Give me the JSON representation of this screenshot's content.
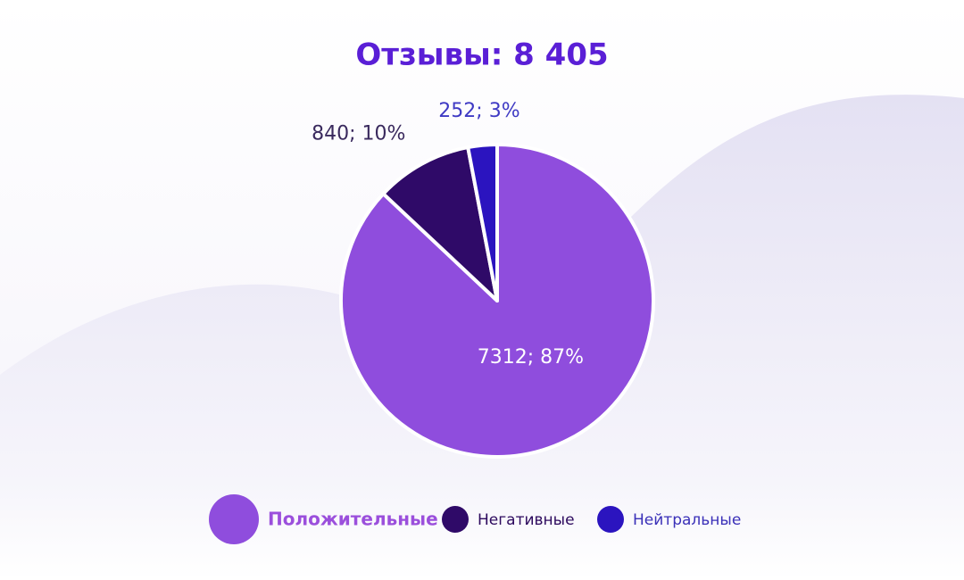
{
  "chart_data": {
    "type": "pie",
    "title": "Отзывы: 8 405",
    "categories": [
      "Положительные",
      "Негативные",
      "Нейтральные"
    ],
    "values": [
      7312,
      840,
      252
    ],
    "value_labels": [
      "7312; 87%",
      "840; 10%",
      "252; 3%"
    ],
    "colors": [
      "#8f4ddd",
      "#2f0a68",
      "#2b14bf"
    ],
    "legend": "bottom"
  }
}
